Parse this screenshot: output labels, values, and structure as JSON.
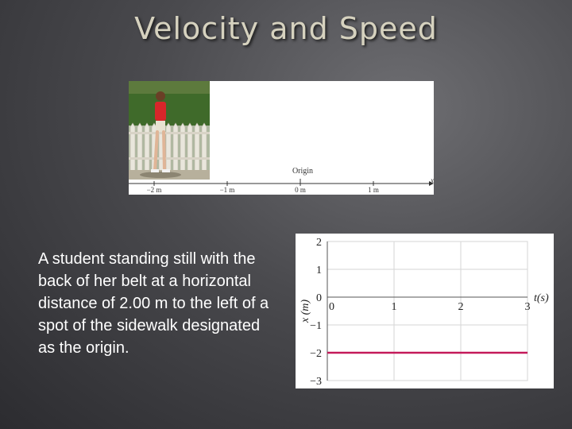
{
  "slide": {
    "title": "Velocity and Speed",
    "caption": "A student standing still with the back of her belt at a horizontal distance of 2.00 m to the left of a spot of the sidewalk designated as the origin."
  },
  "number_line": {
    "origin_label": "Origin",
    "axis_label": "x",
    "ticks": [
      {
        "value": -2,
        "label": "−2 m"
      },
      {
        "value": -1,
        "label": "−1 m"
      },
      {
        "value": 0,
        "label": "0 m"
      },
      {
        "value": 1,
        "label": "1 m"
      }
    ]
  },
  "chart_data": {
    "type": "line",
    "xlabel": "t(s)",
    "ylabel": "x (m)",
    "xlim": [
      0,
      3
    ],
    "ylim": [
      -3,
      2
    ],
    "x_ticks": [
      0,
      1,
      2,
      3
    ],
    "y_ticks": [
      2,
      1,
      0,
      -1,
      -2,
      -3
    ],
    "grid": true,
    "series": [
      {
        "x": [
          0,
          3
        ],
        "y": [
          -2,
          -2
        ],
        "color": "#c41a5a"
      }
    ]
  }
}
